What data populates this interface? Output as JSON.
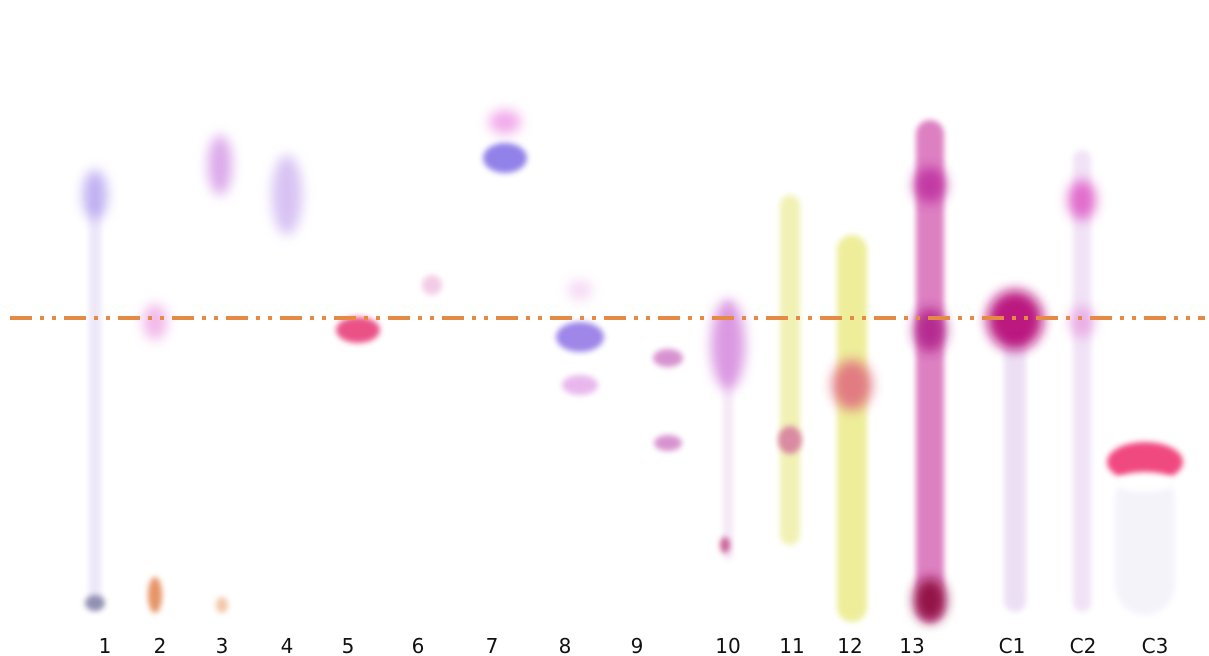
{
  "lanes": [
    "1",
    "2",
    "3",
    "4",
    "5",
    "6",
    "7",
    "8",
    "9",
    "10",
    "11",
    "12",
    "13",
    "C1",
    "C2",
    "C3"
  ]
}
